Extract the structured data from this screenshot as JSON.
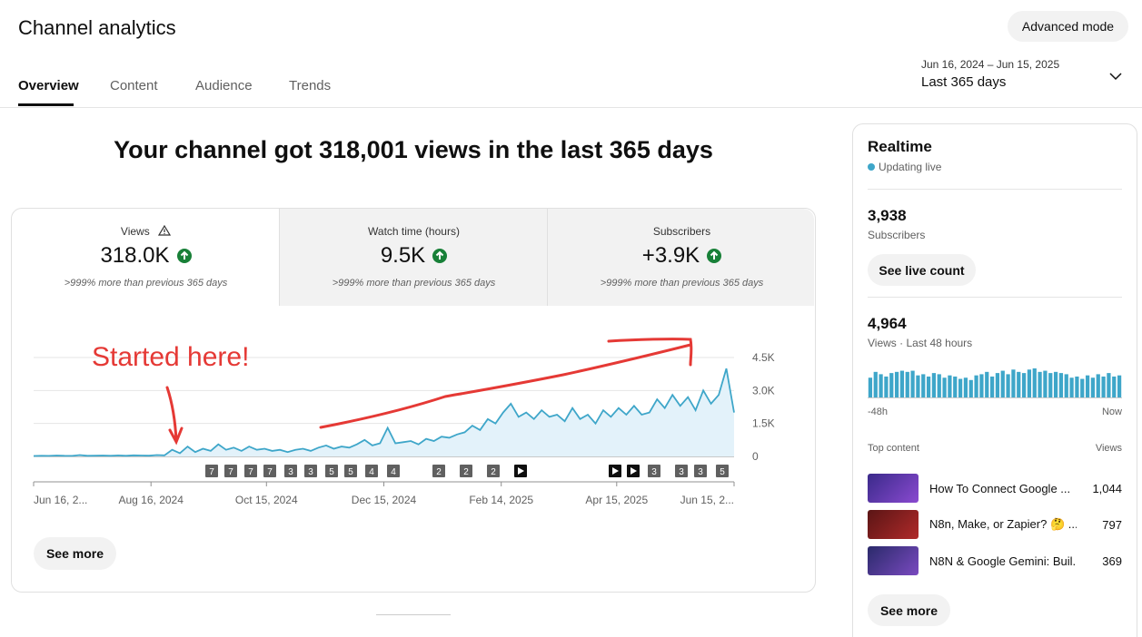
{
  "header": {
    "title": "Channel analytics",
    "advanced_button": "Advanced mode",
    "tabs": [
      "Overview",
      "Content",
      "Audience",
      "Trends"
    ],
    "date_range": "Jun 16, 2024 – Jun 15, 2025",
    "period": "Last 365 days"
  },
  "headline": "Your channel got 318,001 views in the last 365 days",
  "metrics": [
    {
      "label": "Views",
      "value": "318.0K",
      "note": ">999% more than previous 365 days"
    },
    {
      "label": "Watch time (hours)",
      "value": "9.5K",
      "note": ">999% more than previous 365 days"
    },
    {
      "label": "Subscribers",
      "value": "+3.9K",
      "note": ">999% more than previous 365 days"
    }
  ],
  "chart_data": {
    "type": "line",
    "color": "#3ea6c9",
    "x": [
      0,
      4,
      8,
      12,
      16,
      20,
      24,
      28,
      32,
      36,
      40,
      44,
      48,
      52,
      56,
      60,
      64,
      68,
      72,
      76,
      80,
      84,
      88,
      92,
      96,
      100,
      104,
      108,
      112,
      116,
      120,
      124,
      128,
      132,
      136,
      140,
      144,
      148,
      152,
      156,
      160,
      164,
      168,
      172,
      176,
      180,
      184,
      188,
      192,
      196,
      200,
      204,
      208,
      212,
      216,
      220,
      224,
      228,
      232,
      236,
      240,
      244,
      248,
      252,
      256,
      260,
      264,
      268,
      272,
      276,
      280,
      284,
      288,
      292,
      296,
      300,
      304,
      308,
      312,
      316,
      320,
      324,
      328,
      332,
      336,
      340,
      344,
      348,
      352,
      356,
      360,
      364
    ],
    "values": [
      20,
      30,
      25,
      40,
      30,
      25,
      60,
      30,
      35,
      40,
      30,
      45,
      30,
      50,
      40,
      35,
      60,
      50,
      300,
      150,
      450,
      200,
      350,
      250,
      550,
      300,
      400,
      250,
      450,
      300,
      350,
      250,
      300,
      200,
      300,
      350,
      250,
      400,
      500,
      350,
      450,
      400,
      550,
      750,
      500,
      600,
      1300,
      600,
      650,
      700,
      550,
      800,
      700,
      900,
      850,
      1000,
      1100,
      1400,
      1200,
      1700,
      1500,
      2000,
      2400,
      1800,
      2000,
      1700,
      2100,
      1800,
      1900,
      1600,
      2200,
      1700,
      1900,
      1500,
      2100,
      1800,
      2200,
      1900,
      2300,
      1900,
      2000,
      2600,
      2200,
      2800,
      2300,
      2700,
      2100,
      3000,
      2400,
      2800,
      4000,
      2000
    ],
    "xlim": [
      0,
      364
    ],
    "xticks": [
      {
        "value": 0,
        "label": "Jun 16, 2..."
      },
      {
        "value": 61,
        "label": "Aug 16, 2024"
      },
      {
        "value": 121,
        "label": "Oct 15, 2024"
      },
      {
        "value": 182,
        "label": "Dec 15, 2024"
      },
      {
        "value": 243,
        "label": "Feb 14, 2025"
      },
      {
        "value": 303,
        "label": "Apr 15, 2025"
      },
      {
        "value": 364,
        "label": "Jun 15, 2..."
      }
    ],
    "ylim": [
      0,
      4500
    ],
    "yticks": [
      0,
      {
        "value": 1500,
        "label": "1.5K"
      },
      {
        "value": 3000,
        "label": "3.0K"
      },
      {
        "value": 4500,
        "label": "4.5K"
      }
    ],
    "grid": true,
    "annotation": "Started here!"
  },
  "video_markers": [
    "7",
    "7",
    "7",
    "7",
    "3",
    "3",
    "5",
    "5",
    "4",
    "4",
    "2",
    "2",
    "2",
    "3",
    "3",
    "3",
    "5"
  ],
  "see_more": "See more",
  "realtime": {
    "title": "Realtime",
    "status": "Updating live",
    "subscribers": "3,938",
    "subscribers_label": "Subscribers",
    "live_button": "See live count",
    "views": "4,964",
    "views_label": "Views · Last 48 hours",
    "hourly": [
      85,
      110,
      100,
      90,
      105,
      110,
      115,
      110,
      115,
      95,
      100,
      90,
      105,
      100,
      85,
      95,
      90,
      80,
      85,
      75,
      95,
      100,
      110,
      90,
      105,
      115,
      100,
      120,
      110,
      105,
      120,
      125,
      110,
      115,
      105,
      110,
      105,
      100,
      85,
      90,
      80,
      95,
      85,
      100,
      90,
      105,
      90,
      95
    ],
    "start_label": "-48h",
    "end_label": "Now",
    "top_content_label": "Top content",
    "views_column": "Views",
    "top_content": [
      {
        "title": "How To Connect Google ...",
        "views": "1,044"
      },
      {
        "title": "N8n, Make, or Zapier? 🤔 ...",
        "views": "797"
      },
      {
        "title": "N8N & Google Gemini: Buil...",
        "views": "369"
      }
    ],
    "see_more": "See more"
  }
}
